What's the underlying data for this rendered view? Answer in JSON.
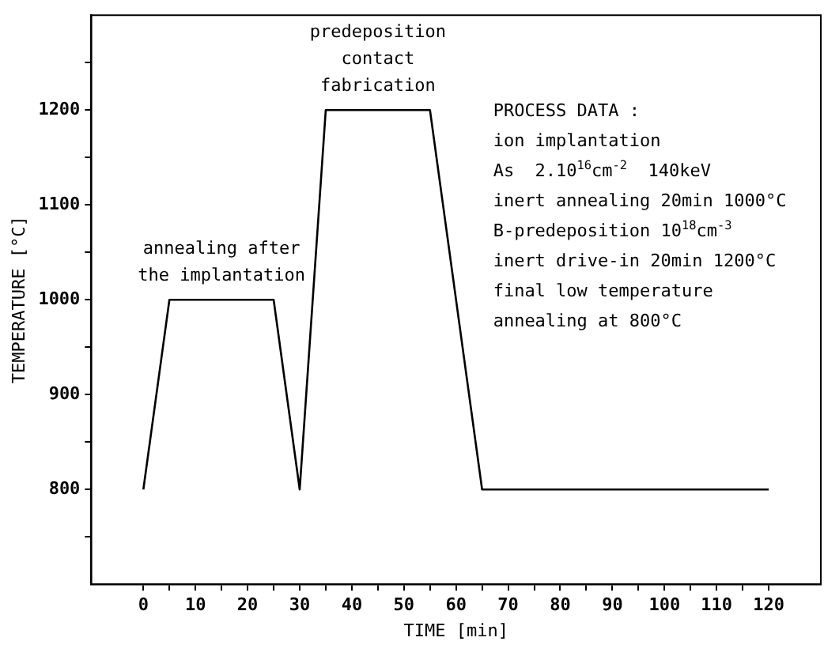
{
  "chart_data": {
    "type": "line",
    "xlabel": "TIME [min]",
    "ylabel": "TEMPERATURE [°C]",
    "x": [
      0,
      5,
      25,
      30,
      35,
      55,
      65,
      120
    ],
    "series": [
      {
        "color": "#000000",
        "values": [
          800,
          1000,
          1000,
          800,
          1200,
          1200,
          800,
          800
        ]
      }
    ],
    "xlim": [
      -10,
      130
    ],
    "xticks": [
      0,
      {
        "value": 5,
        "label": null
      },
      10,
      {
        "value": 15,
        "label": null
      },
      20,
      {
        "value": 25,
        "label": null
      },
      30,
      {
        "value": 35,
        "label": null
      },
      40,
      {
        "value": 45,
        "label": null
      },
      50,
      {
        "value": 55,
        "label": null
      },
      60,
      {
        "value": 65,
        "label": null
      },
      70,
      {
        "value": 75,
        "label": null
      },
      80,
      {
        "value": 85,
        "label": null
      },
      90,
      {
        "value": 95,
        "label": null
      },
      100,
      {
        "value": 105,
        "label": null
      },
      110,
      {
        "value": 115,
        "label": null
      },
      120
    ],
    "ylim": [
      700,
      1300
    ],
    "yticks": [
      {
        "value": 750,
        "label": null
      },
      800,
      {
        "value": 850,
        "label": null
      },
      900,
      {
        "value": 950,
        "label": null
      },
      1000,
      {
        "value": 1050,
        "label": null
      },
      1100,
      {
        "value": 1150,
        "label": null
      },
      1200,
      {
        "value": 1250,
        "label": null
      }
    ],
    "grid": false,
    "legend": false,
    "marker": "none",
    "line_style": "solid",
    "annotations": [
      {
        "text": "annealing after the implantation",
        "x": 15,
        "y": 1000
      },
      {
        "text": "predeposition contact fabrication",
        "x": 45,
        "y": 1200
      },
      "PROCESS DATA :",
      "ion implantation",
      "As  2.10$^{16}$cm$^{-2}$  140keV",
      "inert annealing 20min 1000°C",
      "B-predeposition 10$^{18}$cm$^{-3}$",
      "inert drive-in 20min 1200°C",
      "final low temperature",
      "annealing at 800°C"
    ]
  }
}
